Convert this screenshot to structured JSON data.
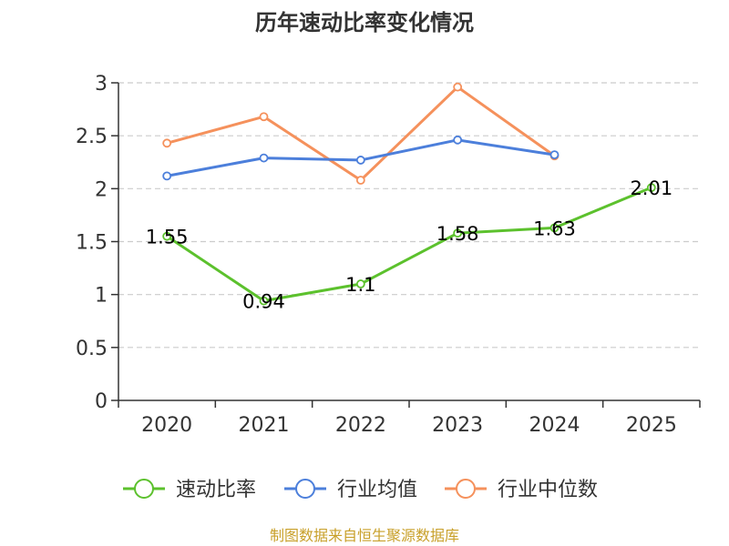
{
  "chart_data": {
    "type": "line",
    "title": "历年速动比率变化情况",
    "categories": [
      "2020",
      "2021",
      "2022",
      "2023",
      "2024",
      "2025"
    ],
    "ylim": [
      0,
      3
    ],
    "yticks": [
      "0",
      "0.5",
      "1",
      "1.5",
      "2",
      "2.5",
      "3"
    ],
    "grid": true,
    "legend_position": "bottom",
    "series": [
      {
        "name": "速动比率",
        "color": "#5cc12d",
        "values": [
          1.55,
          0.94,
          1.1,
          1.58,
          1.63,
          2.01
        ],
        "labels": [
          "1.55",
          "0.94",
          "1.1",
          "1.58",
          "1.63",
          "2.01"
        ]
      },
      {
        "name": "行业均值",
        "color": "#4c7fdb",
        "values": [
          2.12,
          2.29,
          2.27,
          2.46,
          2.32,
          null
        ]
      },
      {
        "name": "行业中位数",
        "color": "#f5915c",
        "values": [
          2.43,
          2.68,
          2.08,
          2.96,
          2.31,
          null
        ]
      }
    ],
    "source": "制图数据来自恒生聚源数据库"
  }
}
